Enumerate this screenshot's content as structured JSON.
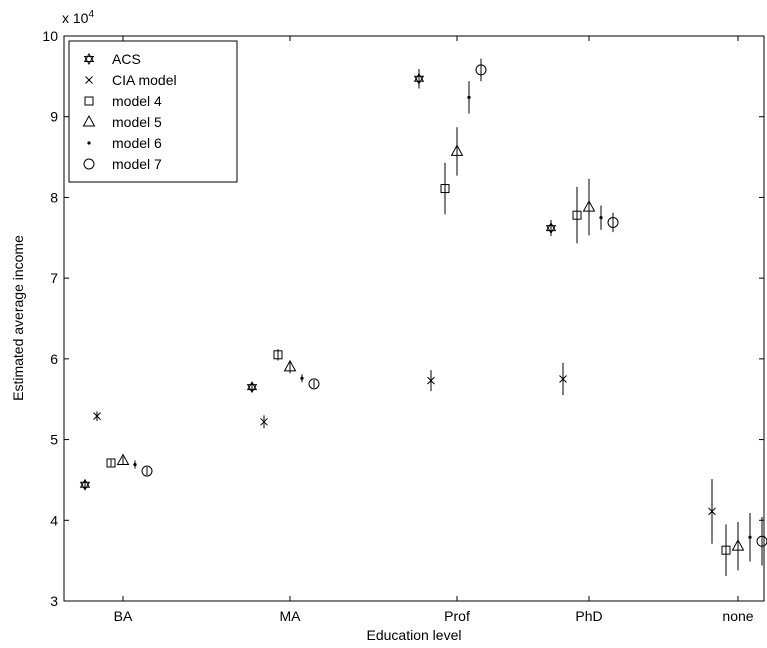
{
  "chart_data": {
    "type": "scatter",
    "xlabel": "Education level",
    "ylabel": "Estimated average income",
    "exponent_label": "x 10",
    "exponent_power": "4",
    "categories": [
      "BA",
      "MA",
      "Prof",
      "PhD",
      "none"
    ],
    "ylim": [
      3,
      10
    ],
    "yticks": [
      "3",
      "4",
      "5",
      "6",
      "7",
      "8",
      "9",
      "10"
    ],
    "grid": false,
    "legend_position": "top-left",
    "series": [
      {
        "name": "ACS",
        "marker": "hexagram",
        "values": [
          4.44,
          5.65,
          9.47,
          7.62,
          null
        ],
        "err": [
          0.05,
          0.06,
          0.12,
          0.1,
          null
        ]
      },
      {
        "name": "CIA model",
        "marker": "x",
        "values": [
          5.29,
          5.22,
          5.73,
          5.75,
          4.11
        ],
        "err": [
          0.06,
          0.08,
          0.13,
          0.2,
          0.4
        ]
      },
      {
        "name": "model 4",
        "marker": "square",
        "values": [
          4.71,
          6.05,
          8.11,
          7.78,
          3.63
        ],
        "err": [
          0.04,
          0.07,
          0.32,
          0.35,
          0.32
        ]
      },
      {
        "name": "model 5",
        "marker": "triangle",
        "values": [
          4.74,
          5.9,
          8.57,
          7.88,
          3.68
        ],
        "err": [
          0.05,
          0.08,
          0.3,
          0.35,
          0.3
        ]
      },
      {
        "name": "model 6",
        "marker": "dot",
        "values": [
          4.69,
          5.76,
          9.24,
          7.75,
          3.79
        ],
        "err": [
          0.05,
          0.05,
          0.2,
          0.15,
          0.3
        ]
      },
      {
        "name": "model 7",
        "marker": "circle",
        "values": [
          4.61,
          5.69,
          9.58,
          7.69,
          3.74
        ],
        "err": [
          0.05,
          0.05,
          0.14,
          0.12,
          0.3
        ]
      }
    ]
  }
}
